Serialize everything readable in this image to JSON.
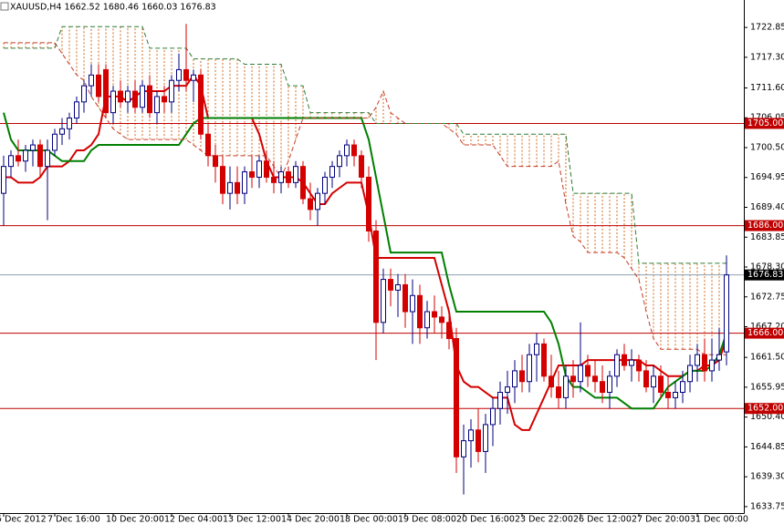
{
  "chart_data": {
    "type": "candlestick",
    "title": "XAUUSD,H4  1662.52 1680.46 1660.03 1676.83",
    "categories": [
      "5 Dec 2012",
      null,
      null,
      null,
      null,
      null,
      null,
      "7 Dec 16:00",
      null,
      null,
      null,
      null,
      null,
      null,
      null,
      "10 Dec 20:00",
      null,
      null,
      null,
      null,
      null,
      null,
      null,
      "12 Dec 04:00",
      null,
      null,
      null,
      null,
      null,
      null,
      null,
      "13 Dec 12:00",
      null,
      null,
      null,
      null,
      null,
      null,
      null,
      "14 Dec 20:00",
      null,
      null,
      null,
      null,
      null,
      null,
      null,
      "18 Dec 00:00",
      null,
      null,
      null,
      null,
      null,
      null,
      null,
      "19 Dec 08:00",
      null,
      null,
      null,
      null,
      null,
      null,
      null,
      "20 Dec 16:00",
      null,
      null,
      null,
      null,
      null,
      null,
      null,
      "23 Dec 22:00",
      null,
      null,
      null,
      null,
      null,
      null,
      null,
      "26 Dec 12:00",
      null,
      null,
      null,
      null,
      null,
      null,
      null,
      "27 Dec 20:00",
      null,
      null,
      null,
      null,
      null,
      null,
      null,
      "31 Dec 00:00",
      null,
      null,
      null,
      null
    ],
    "candles": {
      "up_color": "#00007f",
      "down_color": "#d40000",
      "open": [
        1692,
        1697,
        1699,
        1698,
        1700,
        1701,
        1697,
        1700,
        1703,
        1704,
        1706,
        1709,
        1712,
        1714,
        1715,
        1707,
        1711,
        1709,
        1711,
        1708,
        1712,
        1707,
        1710,
        1709,
        1713,
        1715,
        1713,
        1714,
        1703,
        1699,
        1697,
        1692,
        1694,
        1692,
        1696,
        1695,
        1698,
        1695,
        1694,
        1696,
        1694,
        1697,
        1691,
        1689,
        1692,
        1695,
        1697,
        1699,
        1701,
        1699,
        1695,
        1685,
        1668,
        1676,
        1674,
        1675,
        1670,
        1673,
        1667,
        1670,
        1669,
        1668,
        1665,
        1643,
        1646,
        1648,
        1644,
        1649,
        1652,
        1655,
        1656,
        1659,
        1657,
        1662,
        1664,
        1658,
        1656,
        1654,
        1658,
        1657,
        1660,
        1658,
        1657,
        1655,
        1658,
        1662,
        1660,
        1661,
        1659,
        1656,
        1658,
        1655,
        1654,
        1655,
        1657,
        1660,
        1662,
        1659,
        1661,
        1662.52
      ],
      "high": [
        1699,
        1700,
        1702,
        1701,
        1702,
        1702,
        1702,
        1704,
        1706,
        1707,
        1710,
        1713,
        1716,
        1716,
        1716,
        1712,
        1713,
        1712,
        1713,
        1713,
        1714,
        1711,
        1712,
        1714,
        1718,
        1723.5,
        1715,
        1715,
        1705,
        1701,
        1699,
        1697,
        1697,
        1697,
        1699,
        1699,
        1700,
        1698,
        1697,
        1697,
        1698,
        1698,
        1694,
        1693,
        1696,
        1698,
        1700,
        1702,
        1702,
        1700,
        1697,
        1687,
        1678,
        1678,
        1677,
        1677,
        1676,
        1675,
        1672,
        1673,
        1671,
        1670,
        1667,
        1649,
        1650,
        1652,
        1651,
        1654,
        1657,
        1659,
        1661,
        1662,
        1664,
        1666,
        1665,
        1662,
        1659,
        1660,
        1661,
        1668,
        1662,
        1661,
        1660,
        1659,
        1663,
        1664,
        1663,
        1662,
        1661,
        1660,
        1660,
        1658,
        1657,
        1659,
        1662,
        1664,
        1665,
        1665,
        1667,
        1680.46
      ],
      "low": [
        1686,
        1695,
        1697,
        1696,
        1697,
        1695,
        1687,
        1699,
        1701,
        1702,
        1705,
        1707,
        1710,
        1709,
        1706,
        1705,
        1708,
        1707,
        1707,
        1707,
        1706,
        1705,
        1707,
        1707,
        1711,
        1711,
        1709,
        1702,
        1697,
        1694,
        1690,
        1689,
        1690,
        1690,
        1693,
        1693,
        1694,
        1692,
        1692,
        1693,
        1693,
        1690,
        1687,
        1686,
        1690,
        1693,
        1695,
        1697,
        1697,
        1693,
        1683,
        1661,
        1666,
        1671,
        1669,
        1667,
        1664,
        1664,
        1665,
        1666,
        1665,
        1663,
        1640,
        1636,
        1641,
        1642,
        1640,
        1645,
        1649,
        1651,
        1653,
        1655,
        1655,
        1657,
        1657,
        1654,
        1652,
        1652,
        1654,
        1655,
        1656,
        1655,
        1653,
        1652,
        1656,
        1659,
        1657,
        1657,
        1655,
        1653,
        1654,
        1652,
        1652,
        1653,
        1655,
        1657,
        1657,
        1657,
        1659,
        1660.03
      ],
      "close": [
        1697,
        1699,
        1698,
        1700,
        1701,
        1697,
        1700,
        1703,
        1704,
        1706,
        1709,
        1712,
        1714,
        1710,
        1707,
        1711,
        1709,
        1711,
        1708,
        1712,
        1707,
        1710,
        1709,
        1713,
        1715,
        1713,
        1714,
        1703,
        1699,
        1697,
        1692,
        1694,
        1692,
        1696,
        1695,
        1698,
        1695,
        1694,
        1696,
        1694,
        1697,
        1691,
        1689,
        1692,
        1695,
        1697,
        1699,
        1701,
        1699,
        1695,
        1685,
        1668,
        1676,
        1674,
        1675,
        1670,
        1673,
        1667,
        1670,
        1669,
        1668,
        1665,
        1643,
        1646,
        1648,
        1644,
        1649,
        1652,
        1655,
        1656,
        1659,
        1657,
        1662,
        1664,
        1658,
        1656,
        1654,
        1658,
        1657,
        1660,
        1658,
        1657,
        1655,
        1658,
        1662,
        1660,
        1661,
        1659,
        1656,
        1658,
        1655,
        1654,
        1655,
        1657,
        1660,
        1662,
        1659,
        1661,
        1662,
        1676.83
      ]
    },
    "series": [
      {
        "color": "#d40000",
        "dashed": false,
        "values": [
          1695,
          1695,
          1694,
          1694,
          1694,
          1695,
          1697,
          1697,
          1697,
          1698,
          1700,
          1700,
          1701,
          1703,
          1710,
          1710,
          1710,
          1709,
          1710,
          1711,
          1711,
          1711,
          1711,
          1712,
          1712,
          1712,
          1714,
          1712,
          1706,
          1706,
          1706,
          1706,
          1706,
          1706,
          1706,
          1703,
          1698,
          1695,
          1695,
          1695,
          1695,
          1694,
          1692,
          1690,
          1690,
          1692,
          1693,
          1694,
          1694,
          1694,
          1688,
          1680,
          1680,
          1680,
          1680,
          1680,
          1680,
          1680,
          1680,
          1680,
          1675,
          1670,
          1660,
          1657,
          1656,
          1656,
          1655,
          1654,
          1654,
          1654,
          1649,
          1648,
          1648,
          1651,
          1654,
          1657,
          1660,
          1660,
          1660,
          1660,
          1661,
          1661,
          1661,
          1661,
          1661,
          1661,
          1661,
          1661,
          1660,
          1660,
          1659,
          1658,
          1658,
          1658,
          1659,
          1659,
          1660,
          1660,
          1661,
          1665
        ]
      },
      {
        "color": "#007f00",
        "dashed": false,
        "values": [
          1707,
          1702,
          1700,
          1700,
          1700,
          1700,
          1700,
          1699,
          1698,
          1698,
          1698,
          1698,
          1700,
          1701,
          1701,
          1701,
          1701,
          1701,
          1701,
          1701,
          1701,
          1701,
          1701,
          1701,
          1701,
          1703,
          1705,
          1706,
          1706,
          1706,
          1706,
          1706,
          1706,
          1706,
          1706,
          1706,
          1706,
          1706,
          1706,
          1706,
          1706,
          1706,
          1706,
          1706,
          1706,
          1706,
          1706,
          1706,
          1706,
          1706,
          1702,
          1695,
          1688,
          1681,
          1681,
          1681,
          1681,
          1681,
          1681,
          1681,
          1681,
          1675,
          1670,
          1670,
          1670,
          1670,
          1670,
          1670,
          1670,
          1670,
          1670,
          1670,
          1670,
          1670,
          1670,
          1668,
          1664,
          1658,
          1656,
          1656,
          1655,
          1654,
          1654,
          1654,
          1654,
          1653,
          1652,
          1652,
          1652,
          1652,
          1654,
          1656,
          1657,
          1658,
          1659,
          1659,
          1659,
          1660,
          1662,
          1666
        ]
      },
      {
        "color": "#c83c28",
        "dashed": true,
        "values": [
          1720,
          1720,
          1720,
          1720,
          1720,
          1720,
          1720,
          1720,
          1718,
          1716,
          1714,
          1713,
          1710,
          1708,
          1706,
          1704,
          1703,
          1702,
          1702,
          1702,
          1702,
          1702,
          1702,
          1702,
          1702,
          1702,
          1701,
          1700,
          1699,
          1699,
          1699,
          1699,
          1699,
          1699,
          1699,
          1699,
          1699,
          1697,
          1695,
          1698,
          1702,
          1706,
          1706,
          1706,
          1706,
          1706,
          1706,
          1706,
          1706,
          1706,
          1706,
          1708,
          1711,
          1707,
          1706,
          1705,
          1705,
          1705,
          1705,
          1705,
          1705,
          1704,
          1703,
          1701,
          1701,
          1701,
          1701,
          1701,
          1699,
          1697,
          1697,
          1697,
          1697,
          1697,
          1697,
          1697,
          1698,
          1690,
          1684,
          1683,
          1681,
          1681,
          1681,
          1681,
          1681,
          1680,
          1678,
          1676,
          1670,
          1665,
          1663,
          1663,
          1663,
          1663,
          1663,
          1663,
          1662,
          1662,
          1662,
          1662
        ]
      },
      {
        "color": "#2e7d32",
        "dashed": true,
        "values": [
          1719,
          1719,
          1719,
          1719,
          1719,
          1719,
          1719,
          1719,
          1723,
          1723,
          1723,
          1723,
          1723,
          1723,
          1723,
          1723,
          1723,
          1723,
          1723,
          1723,
          1719,
          1719,
          1719,
          1719,
          1719,
          1719,
          1717,
          1717,
          1717,
          1717,
          1717,
          1717,
          1717,
          1716,
          1716,
          1716,
          1716,
          1716,
          1716,
          1712,
          1712,
          1712,
          1707,
          1707,
          1707,
          1707,
          1707,
          1707,
          1707,
          1707,
          1707,
          1705,
          1705,
          1705,
          1705,
          1705,
          1705,
          1705,
          1705,
          1705,
          1705,
          1705,
          1705,
          1703,
          1703,
          1703,
          1703,
          1703,
          1703,
          1703,
          1703,
          1703,
          1703,
          1703,
          1703,
          1703,
          1703,
          1703,
          1692,
          1692,
          1692,
          1692,
          1692,
          1692,
          1692,
          1692,
          1692,
          1679,
          1679,
          1679,
          1679,
          1679,
          1679,
          1679,
          1679,
          1679,
          1679,
          1679,
          1679,
          1679
        ]
      }
    ],
    "cloud_color": "#d2691e",
    "levels": [
      {
        "value": 1705,
        "label": "1705.00",
        "color": "#c00000"
      },
      {
        "value": 1686,
        "label": "1686.00",
        "color": "#c00000"
      },
      {
        "value": 1676.83,
        "label": "1676.83",
        "color": "#8fa0b0",
        "label_color": "#000000"
      },
      {
        "value": 1666,
        "label": "1666.00",
        "color": "#c00000"
      },
      {
        "value": 1652,
        "label": "1652.00",
        "color": "#c00000"
      }
    ],
    "ylim": [
      1632.55,
      1727.95
    ],
    "yticks": [
      1722.85,
      {
        "value": 1717.3,
        "label": "1717.30"
      },
      {
        "value": 1711.6,
        "label": "1711.60"
      },
      1706.05,
      {
        "value": 1700.5,
        "label": "1700.50"
      },
      1694.95,
      {
        "value": 1689.4,
        "label": "1689.40"
      },
      1683.85,
      {
        "value": 1678.3,
        "label": "1678.30"
      },
      1672.75,
      {
        "value": 1667.2,
        "label": "1667.20"
      },
      {
        "value": 1661.5,
        "label": "1661.50"
      },
      1655.95,
      {
        "value": 1650.4,
        "label": "1650.40"
      },
      1644.85,
      {
        "value": 1639.3,
        "label": "1639.30"
      },
      1633.75
    ],
    "grid": false
  }
}
